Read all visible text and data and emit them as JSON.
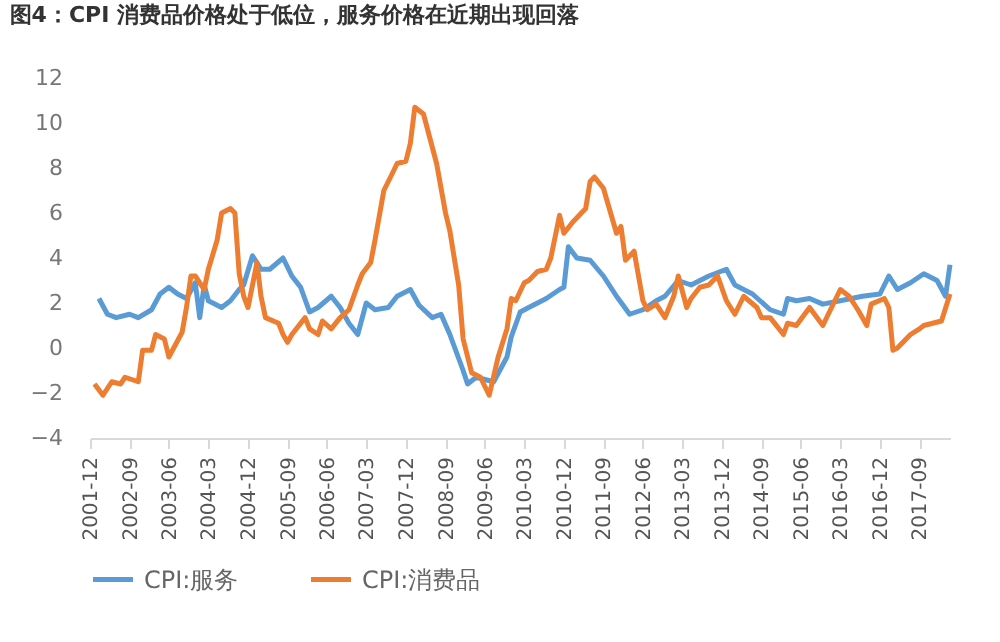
{
  "chart_data": {
    "type": "line",
    "title": "图4：CPI 消费品价格处于低位，服务价格在近期出现回落",
    "xlim": [
      "2001-12",
      "2018-04"
    ],
    "xticks": [
      "2001-12",
      "2002-09",
      "2003-06",
      "2004-03",
      "2004-12",
      "2005-09",
      "2006-06",
      "2007-03",
      "2007-12",
      "2008-09",
      "2009-06",
      "2010-03",
      "2010-12",
      "2011-09",
      "2012-06",
      "2013-03",
      "2013-12",
      "2014-09",
      "2015-06",
      "2016-03",
      "2016-12",
      "2017-09"
    ],
    "ylim": [
      -4,
      12
    ],
    "yticks": [
      -4,
      -2,
      0,
      2,
      4,
      6,
      8,
      10,
      12
    ],
    "grid": false,
    "legend": "bottom",
    "line_style": "solid",
    "marker": "none",
    "series": [
      {
        "name": "CPI:服务",
        "color": "#5b9bd5",
        "x": [
          "2002-02",
          "2002-04",
          "2002-06",
          "2002-09",
          "2002-11",
          "2003-02",
          "2003-04",
          "2003-06",
          "2003-08",
          "2003-10",
          "2003-12",
          "2004-01",
          "2004-02",
          "2004-03",
          "2004-06",
          "2004-08",
          "2004-10",
          "2004-11",
          "2005-01",
          "2005-03",
          "2005-05",
          "2005-08",
          "2005-10",
          "2005-12",
          "2006-02",
          "2006-04",
          "2006-07",
          "2006-09",
          "2006-11",
          "2007-01",
          "2007-03",
          "2007-05",
          "2007-08",
          "2007-10",
          "2008-01",
          "2008-03",
          "2008-06",
          "2008-08",
          "2008-10",
          "2009-01",
          "2009-02",
          "2009-04",
          "2009-08",
          "2009-11",
          "2009-12",
          "2010-02",
          "2010-04",
          "2010-08",
          "2010-11",
          "2010-12",
          "2011-01",
          "2011-03",
          "2011-06",
          "2011-09",
          "2011-12",
          "2012-03",
          "2012-06",
          "2012-09",
          "2012-11",
          "2013-02",
          "2013-05",
          "2013-09",
          "2014-01",
          "2014-03",
          "2014-07",
          "2014-11",
          "2015-02",
          "2015-03",
          "2015-05",
          "2015-08",
          "2015-11",
          "2016-03",
          "2016-08",
          "2016-12",
          "2017-02",
          "2017-04",
          "2017-07",
          "2017-10",
          "2018-01",
          "2018-03",
          "2018-04"
        ],
        "values": [
          2.2,
          1.5,
          1.35,
          1.5,
          1.35,
          1.7,
          2.4,
          2.7,
          2.4,
          2.2,
          2.9,
          1.35,
          2.8,
          2.1,
          1.8,
          2.1,
          2.6,
          2.8,
          4.1,
          3.5,
          3.5,
          4.0,
          3.2,
          2.7,
          1.6,
          1.8,
          2.3,
          1.8,
          1.1,
          0.6,
          2.0,
          1.7,
          1.8,
          2.3,
          2.6,
          1.9,
          1.35,
          1.5,
          0.6,
          -1.0,
          -1.6,
          -1.3,
          -1.5,
          -0.4,
          0.5,
          1.6,
          1.8,
          2.2,
          2.6,
          2.7,
          4.5,
          4.0,
          3.9,
          3.2,
          2.3,
          1.5,
          1.7,
          2.1,
          2.3,
          3.0,
          2.8,
          3.2,
          3.5,
          2.8,
          2.4,
          1.7,
          1.5,
          2.2,
          2.1,
          2.2,
          1.95,
          2.1,
          2.3,
          2.4,
          3.2,
          2.6,
          2.9,
          3.3,
          3.0,
          2.3,
          3.7
        ]
      },
      {
        "name": "CPI:消费品",
        "color": "#ed7d31",
        "x": [
          "2002-01",
          "2002-03",
          "2002-05",
          "2002-07",
          "2002-08",
          "2002-11",
          "2002-12",
          "2003-02",
          "2003-03",
          "2003-05",
          "2003-06",
          "2003-09",
          "2003-10",
          "2003-11",
          "2003-12",
          "2004-02",
          "2004-03",
          "2004-05",
          "2004-06",
          "2004-08",
          "2004-09",
          "2004-10",
          "2004-11",
          "2004-12",
          "2005-02",
          "2005-03",
          "2005-04",
          "2005-07",
          "2005-08",
          "2005-09",
          "2005-10",
          "2006-01",
          "2006-02",
          "2006-04",
          "2006-05",
          "2006-07",
          "2006-09",
          "2006-11",
          "2007-01",
          "2007-02",
          "2007-04",
          "2007-05",
          "2007-07",
          "2007-09",
          "2007-10",
          "2007-12",
          "2008-01",
          "2008-02",
          "2008-04",
          "2008-07",
          "2008-09",
          "2008-10",
          "2008-12",
          "2009-01",
          "2009-03",
          "2009-05",
          "2009-07",
          "2009-09",
          "2009-11",
          "2009-12",
          "2010-01",
          "2010-03",
          "2010-04",
          "2010-06",
          "2010-08",
          "2010-09",
          "2010-11",
          "2010-12",
          "2011-02",
          "2011-05",
          "2011-06",
          "2011-07",
          "2011-09",
          "2011-12",
          "2012-01",
          "2012-02",
          "2012-04",
          "2012-06",
          "2012-07",
          "2012-09",
          "2012-11",
          "2013-01",
          "2013-02",
          "2013-04",
          "2013-05",
          "2013-07",
          "2013-09",
          "2013-11",
          "2014-01",
          "2014-03",
          "2014-05",
          "2014-08",
          "2014-09",
          "2014-11",
          "2015-02",
          "2015-03",
          "2015-05",
          "2015-08",
          "2015-11",
          "2016-03",
          "2016-05",
          "2016-07",
          "2016-09",
          "2016-10",
          "2017-01",
          "2017-02",
          "2017-03",
          "2017-04",
          "2017-07",
          "2017-09",
          "2017-10",
          "2018-02",
          "2018-04"
        ],
        "values": [
          -1.6,
          -2.1,
          -1.5,
          -1.6,
          -1.3,
          -1.5,
          -0.1,
          -0.1,
          0.6,
          0.4,
          -0.4,
          0.7,
          1.8,
          3.2,
          3.2,
          2.6,
          3.5,
          4.8,
          6.0,
          6.2,
          6.0,
          3.3,
          2.3,
          1.8,
          3.8,
          2.3,
          1.35,
          1.1,
          0.6,
          0.25,
          0.6,
          1.35,
          0.85,
          0.6,
          1.2,
          0.85,
          1.35,
          1.7,
          2.8,
          3.3,
          3.8,
          4.8,
          7.0,
          7.8,
          8.2,
          8.3,
          9.1,
          10.7,
          10.4,
          8.2,
          6.0,
          5.2,
          2.8,
          0.4,
          -1.1,
          -1.3,
          -2.1,
          -0.4,
          0.85,
          2.2,
          2.1,
          2.9,
          3.0,
          3.4,
          3.5,
          4.0,
          5.9,
          5.1,
          5.6,
          6.2,
          7.4,
          7.6,
          7.1,
          5.1,
          5.4,
          3.9,
          4.3,
          2.1,
          1.7,
          1.95,
          1.35,
          2.3,
          3.2,
          1.8,
          2.2,
          2.7,
          2.8,
          3.2,
          2.1,
          1.5,
          2.3,
          1.8,
          1.35,
          1.35,
          0.6,
          1.1,
          1.0,
          1.8,
          1.0,
          2.6,
          2.3,
          1.7,
          1.0,
          1.95,
          2.2,
          1.8,
          -0.1,
          0.0,
          0.6,
          0.85,
          1.0,
          1.2,
          2.4
        ]
      }
    ]
  }
}
